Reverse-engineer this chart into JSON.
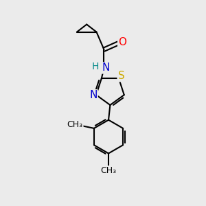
{
  "background_color": "#ebebeb",
  "bond_color": "#000000",
  "atom_colors": {
    "O": "#ff0000",
    "N": "#0000cc",
    "S": "#ccaa00",
    "H": "#008888",
    "C": "#000000"
  },
  "font_size_atoms": 11,
  "font_size_h": 10,
  "font_size_methyl": 9,
  "figsize": [
    3.0,
    3.0
  ],
  "dpi": 100
}
